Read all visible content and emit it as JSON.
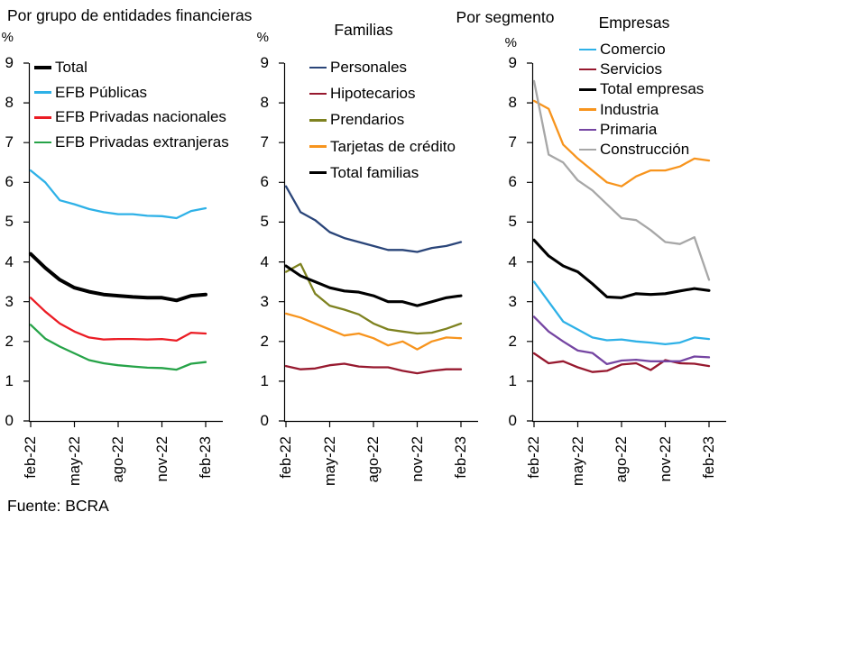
{
  "page": {
    "right_section_title": "Por segmento",
    "source_note": "Fuente: BCRA"
  },
  "axis": {
    "x_tick_labels": [
      "feb-22",
      "may-22",
      "ago-22",
      "nov-22",
      "feb-23"
    ],
    "y_unit_label": "%"
  },
  "chart_data": [
    {
      "type": "line",
      "title": "Por grupo de entidades financieras",
      "ylabel": "%",
      "ylim": [
        0,
        9
      ],
      "x_tick_labels": [
        "feb-22",
        "may-22",
        "ago-22",
        "nov-22",
        "feb-23"
      ],
      "legend_position": "top-left-inside",
      "grid": false,
      "series": [
        {
          "name": "Total",
          "color": "#000000",
          "emphasis": true,
          "values": [
            4.2,
            3.85,
            3.55,
            3.35,
            3.25,
            3.18,
            3.15,
            3.12,
            3.1,
            3.1,
            3.03,
            3.15,
            3.18
          ]
        },
        {
          "name": "EFB Públicas",
          "color": "#2EB1E7",
          "emphasis": false,
          "values": [
            6.3,
            6.0,
            5.55,
            5.45,
            5.33,
            5.25,
            5.2,
            5.2,
            5.16,
            5.15,
            5.1,
            5.28,
            5.35
          ]
        },
        {
          "name": "EFB Privadas nacionales",
          "color": "#EB1C24",
          "emphasis": false,
          "values": [
            3.1,
            2.75,
            2.45,
            2.25,
            2.1,
            2.05,
            2.06,
            2.06,
            2.05,
            2.06,
            2.02,
            2.22,
            2.2
          ]
        },
        {
          "name": "EFB Privadas extranjeras",
          "color": "#26A348",
          "emphasis": false,
          "values": [
            2.42,
            2.07,
            1.87,
            1.7,
            1.53,
            1.45,
            1.4,
            1.37,
            1.34,
            1.33,
            1.29,
            1.44,
            1.48
          ]
        }
      ]
    },
    {
      "type": "line",
      "title": "Familias",
      "ylabel": "%",
      "ylim": [
        0,
        9
      ],
      "x_tick_labels": [
        "feb-22",
        "may-22",
        "ago-22",
        "nov-22",
        "feb-23"
      ],
      "legend_position": "top-left-inside",
      "grid": false,
      "series": [
        {
          "name": "Personales",
          "color": "#2A4579",
          "emphasis": false,
          "values": [
            5.9,
            5.25,
            5.05,
            4.75,
            4.6,
            4.5,
            4.4,
            4.3,
            4.3,
            4.25,
            4.35,
            4.4,
            4.5
          ]
        },
        {
          "name": "Hipotecarios",
          "color": "#97192F",
          "emphasis": false,
          "values": [
            1.38,
            1.3,
            1.32,
            1.4,
            1.44,
            1.37,
            1.35,
            1.35,
            1.26,
            1.2,
            1.26,
            1.3,
            1.3
          ]
        },
        {
          "name": "Prendarios",
          "color": "#7E8220",
          "emphasis": false,
          "values": [
            3.75,
            3.95,
            3.2,
            2.9,
            2.8,
            2.68,
            2.45,
            2.3,
            2.25,
            2.2,
            2.22,
            2.32,
            2.45
          ]
        },
        {
          "name": "Tarjetas de crédito",
          "color": "#F7941D",
          "emphasis": false,
          "values": [
            2.7,
            2.6,
            2.45,
            2.3,
            2.15,
            2.2,
            2.08,
            1.9,
            2.0,
            1.8,
            2.0,
            2.1,
            2.08
          ]
        },
        {
          "name": "Total familias",
          "color": "#000000",
          "emphasis": true,
          "values": [
            3.9,
            3.65,
            3.5,
            3.35,
            3.27,
            3.24,
            3.15,
            3.0,
            3.0,
            2.9,
            3.0,
            3.1,
            3.15
          ]
        }
      ]
    },
    {
      "type": "line",
      "title": "Empresas",
      "ylabel": "%",
      "ylim": [
        0,
        9
      ],
      "x_tick_labels": [
        "feb-22",
        "may-22",
        "ago-22",
        "nov-22",
        "feb-23"
      ],
      "legend_position": "top-left-inside",
      "grid": false,
      "series": [
        {
          "name": "Comercio",
          "color": "#2EB1E7",
          "emphasis": false,
          "values": [
            3.5,
            3.0,
            2.5,
            2.3,
            2.1,
            2.03,
            2.05,
            2.0,
            1.97,
            1.93,
            1.97,
            2.1,
            2.06
          ]
        },
        {
          "name": "Servicios",
          "color": "#97192F",
          "emphasis": false,
          "values": [
            1.7,
            1.45,
            1.5,
            1.35,
            1.23,
            1.26,
            1.42,
            1.45,
            1.28,
            1.53,
            1.45,
            1.44,
            1.38
          ]
        },
        {
          "name": "Total empresas",
          "color": "#000000",
          "emphasis": true,
          "values": [
            4.55,
            4.15,
            3.9,
            3.75,
            3.45,
            3.12,
            3.1,
            3.2,
            3.18,
            3.2,
            3.27,
            3.33,
            3.28
          ]
        },
        {
          "name": "Industria",
          "color": "#F7941D",
          "emphasis": false,
          "values": [
            8.05,
            7.85,
            6.95,
            6.6,
            6.3,
            6.0,
            5.9,
            6.15,
            6.3,
            6.3,
            6.4,
            6.6,
            6.55
          ]
        },
        {
          "name": "Primaria",
          "color": "#7545A2",
          "emphasis": false,
          "values": [
            2.62,
            2.25,
            2.0,
            1.77,
            1.71,
            1.43,
            1.52,
            1.54,
            1.5,
            1.5,
            1.5,
            1.62,
            1.6
          ]
        },
        {
          "name": "Construcción",
          "color": "#A7A7A7",
          "emphasis": false,
          "values": [
            8.55,
            6.7,
            6.5,
            6.05,
            5.8,
            5.45,
            5.1,
            5.05,
            4.8,
            4.5,
            4.45,
            4.62,
            3.55
          ]
        }
      ]
    }
  ]
}
